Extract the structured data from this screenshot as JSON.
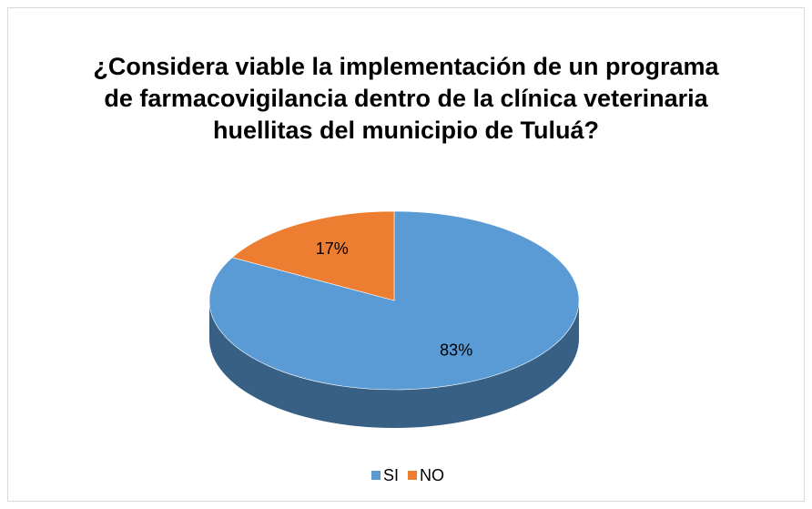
{
  "chart_data": {
    "type": "pie3d",
    "title": "¿Considera viable la implementación de un programa de farmacovigilancia dentro de la clínica veterinaria huellitas del municipio de Tuluá?",
    "categories": [
      "SI",
      "NO"
    ],
    "values": [
      83,
      17
    ],
    "value_labels": [
      "83%",
      "17%"
    ],
    "colors": [
      "#5b9bd5",
      "#ed7d31"
    ],
    "legend": "bottom"
  }
}
